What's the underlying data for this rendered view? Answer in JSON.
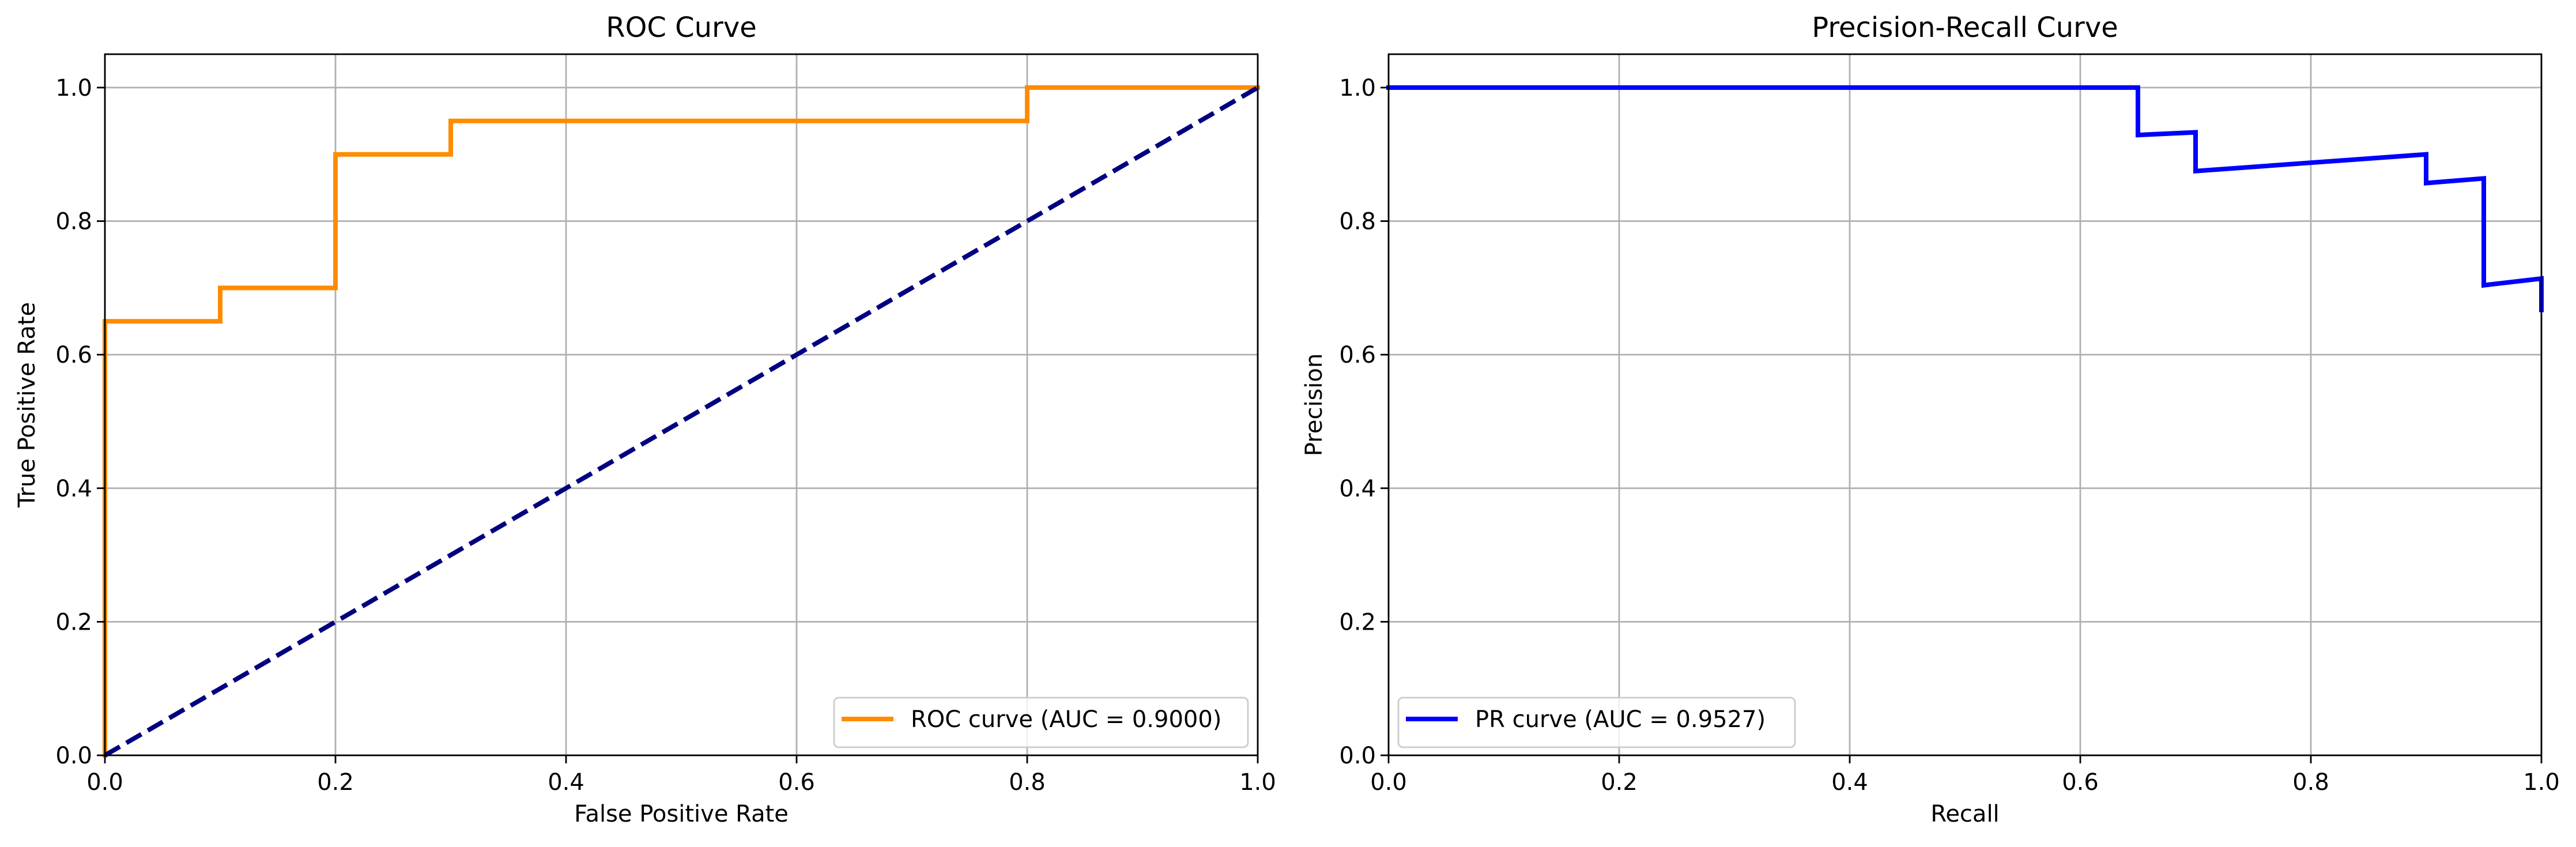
{
  "chart_data": [
    {
      "id": "roc",
      "type": "line",
      "title": "ROC Curve",
      "xlabel": "False Positive Rate",
      "ylabel": "True Positive Rate",
      "xlim": [
        0.0,
        1.0
      ],
      "ylim": [
        0.0,
        1.05
      ],
      "xticks": [
        "0.0",
        "0.2",
        "0.4",
        "0.6",
        "0.8",
        "1.0"
      ],
      "yticks": [
        "0.0",
        "0.2",
        "0.4",
        "0.6",
        "0.8",
        "1.0"
      ],
      "grid": true,
      "legend_position": "lower right",
      "series": [
        {
          "name": "ROC curve (AUC = 0.9000)",
          "color": "#ff8c00",
          "style": "solid",
          "x": [
            0.0,
            0.0,
            0.0,
            0.1,
            0.1,
            0.2,
            0.2,
            0.3,
            0.3,
            0.8,
            0.8,
            1.0
          ],
          "y": [
            0.0,
            0.05,
            0.65,
            0.65,
            0.7,
            0.7,
            0.9,
            0.9,
            0.95,
            0.95,
            1.0,
            1.0
          ]
        },
        {
          "name": "",
          "color": "#000080",
          "style": "dashed",
          "x": [
            0.0,
            1.0
          ],
          "y": [
            0.0,
            1.0
          ]
        }
      ]
    },
    {
      "id": "pr",
      "type": "line",
      "title": "Precision-Recall Curve",
      "xlabel": "Recall",
      "ylabel": "Precision",
      "xlim": [
        0.0,
        1.0
      ],
      "ylim": [
        0.0,
        1.05
      ],
      "xticks": [
        "0.0",
        "0.2",
        "0.4",
        "0.6",
        "0.8",
        "1.0"
      ],
      "yticks": [
        "0.0",
        "0.2",
        "0.4",
        "0.6",
        "0.8",
        "1.0"
      ],
      "grid": true,
      "legend_position": "lower left",
      "series": [
        {
          "name": "PR curve (AUC = 0.9527)",
          "color": "#0000ff",
          "style": "solid",
          "x": [
            0.0,
            0.65,
            0.65,
            0.7,
            0.7,
            0.9,
            0.9,
            0.95,
            0.95,
            1.0,
            1.0
          ],
          "y": [
            1.0,
            1.0,
            0.929,
            0.933,
            0.875,
            0.9,
            0.857,
            0.864,
            0.704,
            0.714,
            0.667
          ]
        }
      ]
    }
  ]
}
